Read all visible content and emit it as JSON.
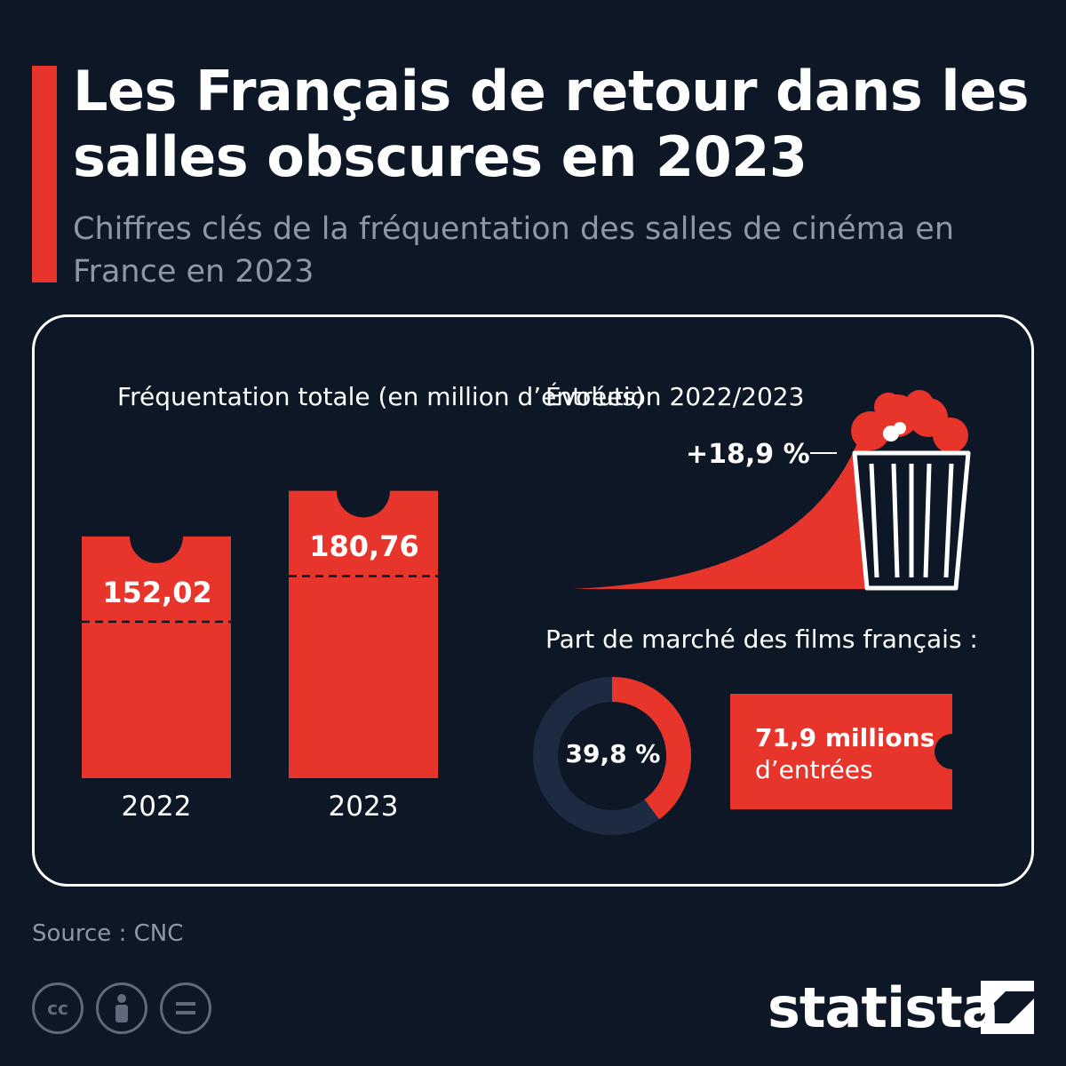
{
  "header": {
    "title": "Les Français de retour dans les salles obscures en 2023",
    "subtitle": "Chiffres clés de la fréquentation des salles de cinéma en France en 2023"
  },
  "frequentation": {
    "heading": "Fréquentation totale (en million d’entrées)"
  },
  "evolution": {
    "heading": "Évolution 2022/2023",
    "value_label": "+18,9 %"
  },
  "market_share": {
    "heading": "Part de marché des films français :",
    "share_label": "39,8 %",
    "share_value": 39.8,
    "tickets_value": "71,9 millions",
    "tickets_unit": "d’entrées"
  },
  "footer": {
    "source": "Source : CNC",
    "brand": "statista",
    "license_icons": [
      "cc-icon",
      "attribution-icon",
      "noderivs-icon"
    ]
  },
  "colors": {
    "background": "#0d1726",
    "accent": "#e8352b",
    "muted": "#8d97a5",
    "donut_track": "#1c2b42"
  },
  "chart_data": [
    {
      "type": "bar",
      "title": "Fréquentation totale (en million d’entrées)",
      "categories": [
        "2022",
        "2023"
      ],
      "values": [
        152.02,
        180.76
      ],
      "value_labels": [
        "152,02",
        "180,76"
      ]
    },
    {
      "type": "pie",
      "title": "Part de marché des films français :",
      "values": [
        39.8,
        60.2
      ],
      "value_labels": [
        "39,8 %"
      ]
    }
  ]
}
